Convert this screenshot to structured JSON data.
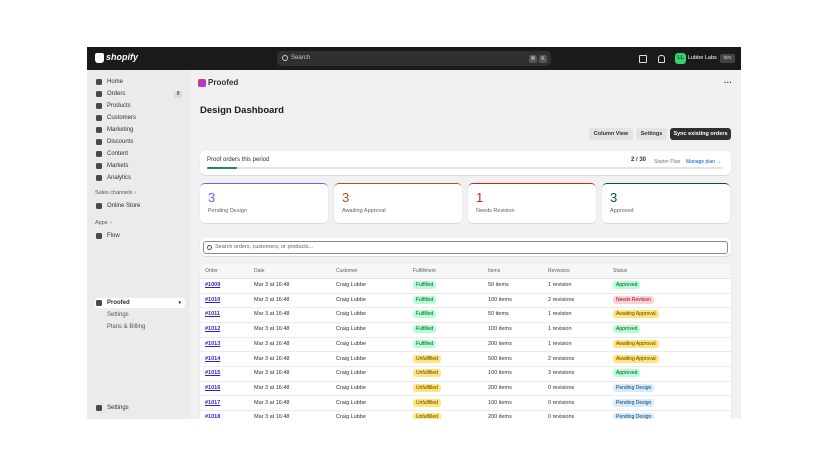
{
  "topbar": {
    "brand": "shopify",
    "search_placeholder": "Search",
    "shortcut": [
      "⌘",
      "K"
    ],
    "avatar": "LL",
    "store": "Lubbe Labs",
    "store_badge": "dev"
  },
  "sidebar": {
    "main": [
      {
        "label": "Home"
      },
      {
        "label": "Orders",
        "badge": 8
      },
      {
        "label": "Products"
      },
      {
        "label": "Customers"
      },
      {
        "label": "Marketing"
      },
      {
        "label": "Discounts"
      },
      {
        "label": "Content"
      },
      {
        "label": "Markets"
      },
      {
        "label": "Analytics"
      }
    ],
    "sales_channels": {
      "title": "Sales channels",
      "items": [
        "Online Store"
      ]
    },
    "apps": {
      "title": "Apps",
      "items": [
        "Flow"
      ]
    },
    "app": {
      "label": "Proofed",
      "items": [
        "Settings",
        "Plans & Billing"
      ]
    },
    "footer": "Settings"
  },
  "page": {
    "app_name": "Proofed",
    "title": "Design Dashboard",
    "actions": [
      "Column View",
      "Settings",
      "Sync existing orders"
    ],
    "usage": {
      "label": "Proof orders this period",
      "count": "2 / 30",
      "plan": "Starter Plan",
      "link": "Manage plan →"
    },
    "stats": [
      {
        "value": 3,
        "label": "Pending Design"
      },
      {
        "value": 3,
        "label": "Awaiting Approval"
      },
      {
        "value": 1,
        "label": "Needs Revision"
      },
      {
        "value": 3,
        "label": "Approved"
      }
    ],
    "search_placeholder": "Search orders, customers, or products...",
    "table": {
      "columns": [
        "Order",
        "Date",
        "Customer",
        "Fulfillment",
        "Items",
        "Revisions",
        "Status"
      ],
      "rows": [
        [
          "#1009",
          "Mar 3 at 16:48",
          "Craig Lubbe",
          "Fulfilled",
          "50 items",
          "1 revision",
          "Approved"
        ],
        [
          "#1010",
          "Mar 3 at 16:48",
          "Craig Lubbe",
          "Fulfilled",
          "100 items",
          "2 revisions",
          "Needs Revision"
        ],
        [
          "#1011",
          "Mar 3 at 16:48",
          "Craig Lubbe",
          "Fulfilled",
          "50 items",
          "1 revision",
          "Awaiting Approval"
        ],
        [
          "#1012",
          "Mar 3 at 16:48",
          "Craig Lubbe",
          "Fulfilled",
          "100 items",
          "1 revision",
          "Approved"
        ],
        [
          "#1013",
          "Mar 3 at 16:48",
          "Craig Lubbe",
          "Fulfilled",
          "200 items",
          "1 revision",
          "Awaiting Approval"
        ],
        [
          "#1014",
          "Mar 3 at 16:48",
          "Craig Lubbe",
          "Unfulfilled",
          "500 items",
          "2 revisions",
          "Awaiting Approval"
        ],
        [
          "#1015",
          "Mar 3 at 16:48",
          "Craig Lubbe",
          "Unfulfilled",
          "100 items",
          "3 revisions",
          "Approved"
        ],
        [
          "#1016",
          "Mar 3 at 16:48",
          "Craig Lubbe",
          "Unfulfilled",
          "200 items",
          "0 revisions",
          "Pending Design"
        ],
        [
          "#1017",
          "Mar 3 at 16:48",
          "Craig Lubbe",
          "Unfulfilled",
          "100 items",
          "0 revisions",
          "Pending Design"
        ],
        [
          "#1018",
          "Mar 3 at 16:48",
          "Craig Lubbe",
          "Unfulfilled",
          "200 items",
          "0 revisions",
          "Pending Design"
        ]
      ]
    }
  }
}
